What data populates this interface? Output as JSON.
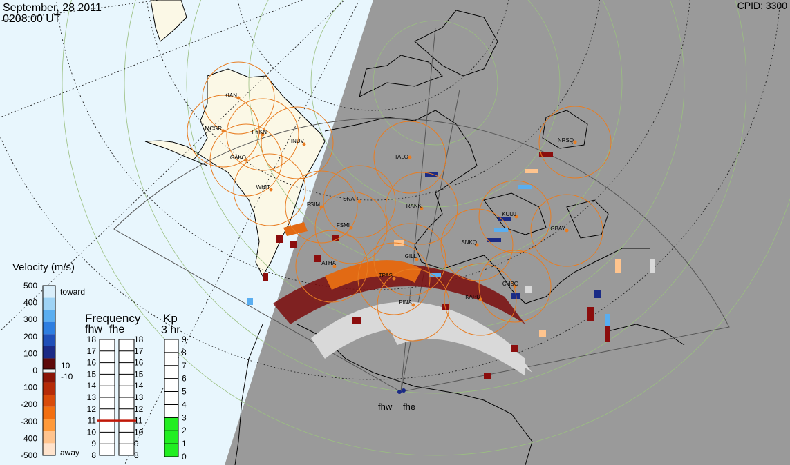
{
  "header": {
    "date": "September, 28 2011",
    "time": "0208:00 UT",
    "cpid": "CPID:  3300"
  },
  "radars": {
    "west": "fhw",
    "east": "fhe"
  },
  "stations": [
    "KIAN",
    "MCGR",
    "FYKN",
    "INUV",
    "GAKO",
    "WHIT",
    "FSIM",
    "SNAP",
    "FSMI",
    "TALO",
    "RANK",
    "NRSQ",
    "KUUJ",
    "GBAY",
    "SNKQ",
    "GILL",
    "ATHA",
    "TPAS",
    "CHBG",
    "KAPU",
    "PINA"
  ],
  "velocity_legend": {
    "title": "Velocity (m/s)",
    "toward_label": "toward",
    "away_label": "away",
    "ticks": [
      "500",
      "400",
      "300",
      "200",
      "100",
      "0",
      "-100",
      "-200",
      "-300",
      "-400",
      "-500"
    ],
    "mid_pos": "10",
    "mid_neg": "-10",
    "colors": [
      "#d9eefa",
      "#9ed3f5",
      "#5aaef0",
      "#2e7ee0",
      "#1f4fb8",
      "#1b2a86",
      "#5e0a0a",
      "#8a1406",
      "#b52b08",
      "#d84b0a",
      "#f26f10",
      "#ff9a3a",
      "#ffc48e",
      "#ffe3cc"
    ]
  },
  "frequency_legend": {
    "title": "Frequency",
    "sub_w": "fhw",
    "sub_e": "fhe",
    "ticks": [
      "18",
      "17",
      "16",
      "15",
      "14",
      "13",
      "12",
      "11",
      "10",
      "9",
      "8"
    ],
    "fhw_value": 11,
    "fhe_value": 11
  },
  "kp_legend": {
    "title": "Kp",
    "sub": "3 hr",
    "ticks": [
      "9",
      "8",
      "7",
      "6",
      "5",
      "4",
      "3",
      "2",
      "1",
      "0"
    ],
    "value": 3,
    "fill_color": "#22ee22"
  }
}
